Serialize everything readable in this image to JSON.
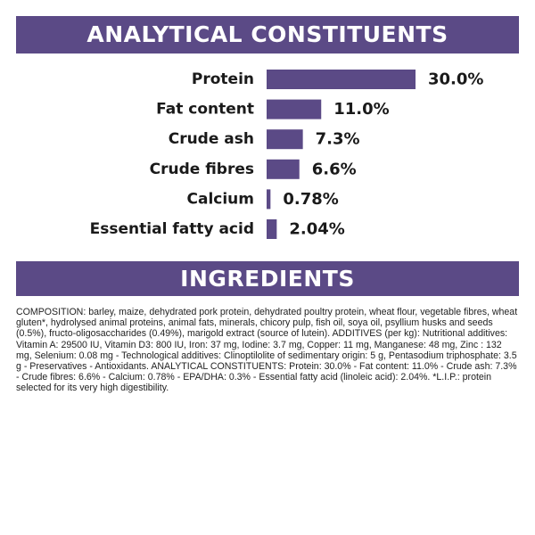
{
  "sections": {
    "analytical_title": "ANALYTICAL CONSTITUENTS",
    "ingredients_title": "INGREDIENTS"
  },
  "colors": {
    "brand_purple": "#5b4a86",
    "bar_purple": "#5b4a86"
  },
  "chart_data": {
    "type": "bar",
    "orientation": "horizontal",
    "categories": [
      "Protein",
      "Fat content",
      "Crude ash",
      "Crude fibres",
      "Calcium",
      "Essential fatty acid"
    ],
    "values": [
      30.0,
      11.0,
      7.3,
      6.6,
      0.78,
      2.04
    ],
    "value_labels": [
      "30.0%",
      "11.0%",
      "7.3%",
      "6.6%",
      "0.78%",
      "2.04%"
    ],
    "unit": "%",
    "title": "ANALYTICAL CONSTITUENTS",
    "xlim": [
      0,
      30
    ],
    "grid": false,
    "legend": "none"
  },
  "ingredients": {
    "text": "COMPOSITION: barley, maize, dehydrated pork protein, dehydrated poultry protein, wheat flour, vegetable fibres, wheat gluten*, hydrolysed animal proteins, animal fats, minerals, chicory pulp, fish oil, soya oil, psyllium husks and seeds (0.5%), fructo-oligosaccharides (0.49%), marigold extract (source of lutein). ADDITIVES (per kg): Nutritional additives: Vitamin A: 29500 IU, Vitamin D3: 800 IU, Iron: 37 mg, Iodine: 3.7 mg, Copper: 11 mg, Manganese: 48 mg, Zinc : 132 mg, Selenium: 0.08 mg - Technological additives: Clinoptilolite of sedimentary origin: 5 g, Pentasodium triphosphate: 3.5 g - Preservatives - Antioxidants. ANALYTICAL CONSTITUENTS: Protein: 30.0% - Fat content: 11.0% - Crude ash: 7.3% - Crude fibres: 6.6% - Calcium: 0.78% - EPA/DHA: 0.3% - Essential fatty acid (linoleic acid): 2.04%. *L.I.P.: protein selected for its very high digestibility."
  }
}
